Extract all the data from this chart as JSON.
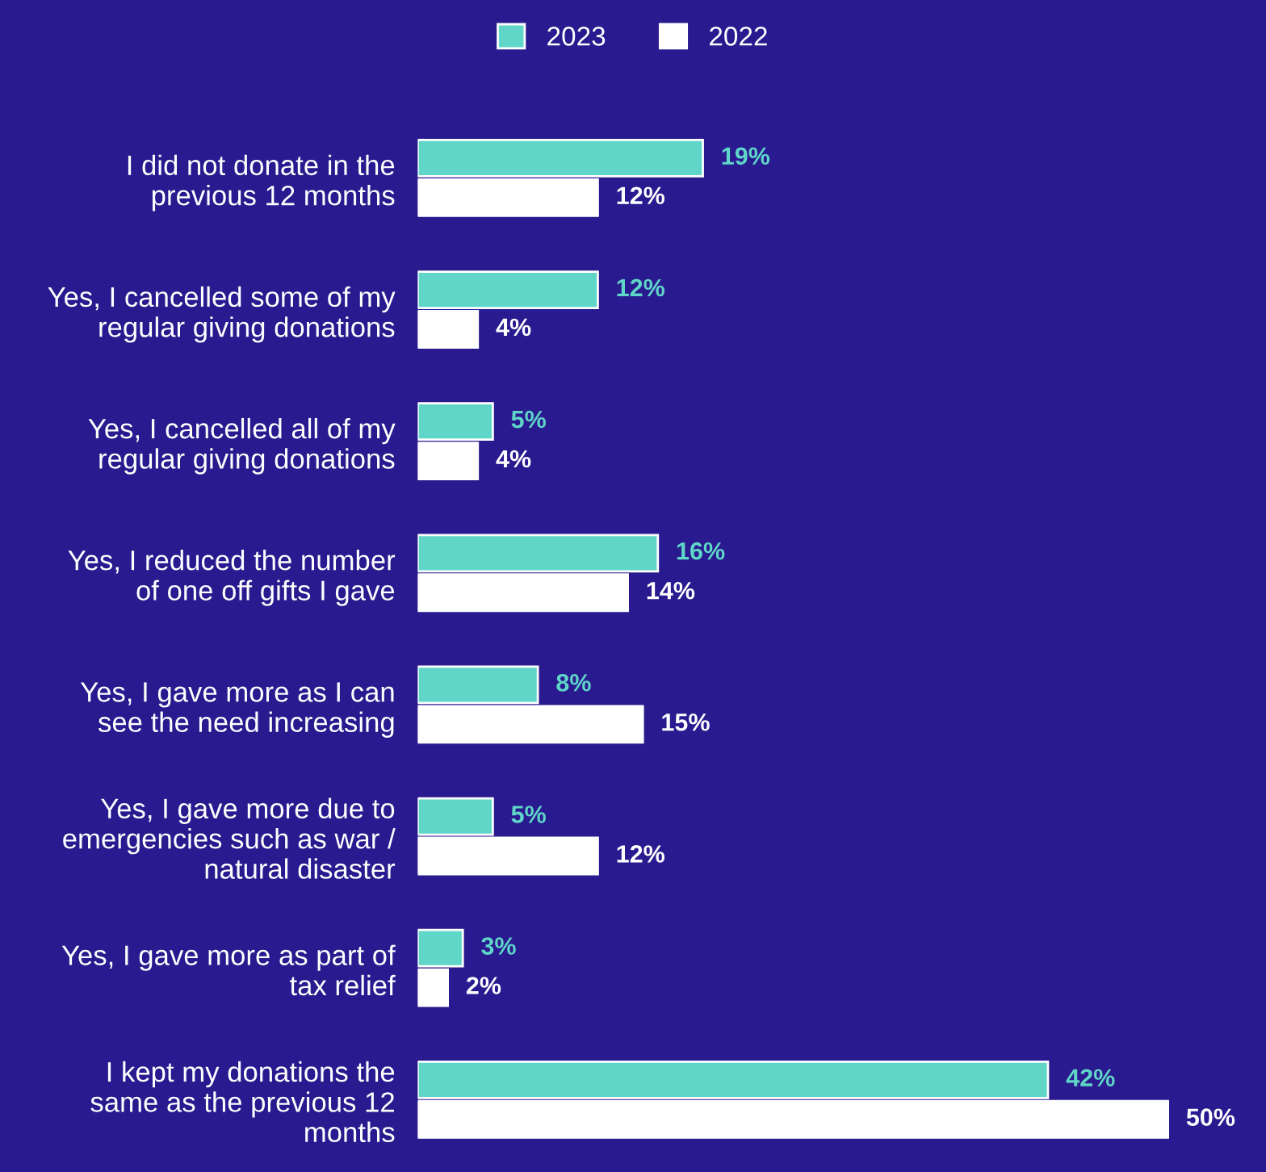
{
  "chart_data": {
    "type": "bar",
    "orientation": "horizontal",
    "legend": "top",
    "categories": [
      "I did not donate in the\nprevious 12 months",
      "Yes, I cancelled some of my\nregular giving donations",
      "Yes, I cancelled all of my\nregular giving donations",
      "Yes, I reduced the number\nof one off gifts I gave",
      "Yes, I gave more as I can\nsee the need increasing",
      "Yes, I gave more due to\nemergencies such as war /\nnatural disaster",
      "Yes, I gave more as part of\ntax relief",
      "I kept my donations the\nsame as the previous 12\nmonths"
    ],
    "series": [
      {
        "name": "2023",
        "color": "#5fd6c8",
        "values": [
          19,
          12,
          5,
          16,
          8,
          5,
          3,
          42
        ],
        "value_labels": [
          "19%",
          "12%",
          "5%",
          "16%",
          "8%",
          "5%",
          "3%",
          "42%"
        ]
      },
      {
        "name": "2022",
        "color": "#ffffff",
        "values": [
          12,
          4,
          4,
          14,
          15,
          12,
          2,
          50
        ],
        "value_labels": [
          "12%",
          "4%",
          "4%",
          "14%",
          "15%",
          "12%",
          "2%",
          "50%"
        ]
      }
    ]
  }
}
